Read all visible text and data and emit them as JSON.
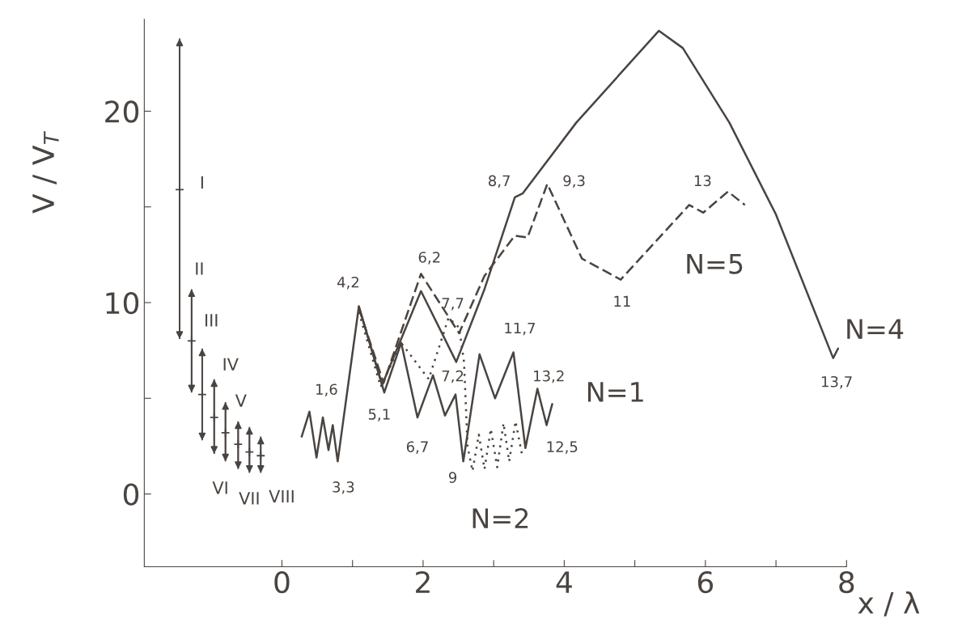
{
  "chart_data": {
    "type": "line",
    "xlabel": "x / λ",
    "ylabel": "V / V$_{T}$",
    "xlim": [
      -1.95,
      8
    ],
    "ylim": [
      -3.8,
      24.8
    ],
    "xticks": [
      0,
      {
        "value": 1,
        "label": null
      },
      2,
      {
        "value": 3,
        "label": null
      },
      4,
      {
        "value": 5,
        "label": null
      },
      6,
      {
        "value": 7,
        "label": null
      },
      8
    ],
    "yticks": [
      0,
      {
        "value": 5,
        "label": null
      },
      10,
      {
        "value": 15,
        "label": null
      },
      20
    ],
    "grid": false,
    "series": [
      {
        "color": "#4a4440",
        "line_style": "solid",
        "x": [
          0.28,
          0.39,
          0.49,
          0.58,
          0.66,
          0.72,
          0.79,
          1.09,
          1.45,
          1.69,
          1.92,
          2.14,
          2.31,
          2.46,
          2.57,
          2.8,
          3.02,
          3.28,
          3.45,
          3.62,
          3.75,
          3.83
        ],
        "values": [
          3.0,
          4.3,
          1.9,
          4.0,
          2.3,
          3.6,
          1.7,
          9.8,
          5.3,
          7.9,
          4.0,
          6.2,
          4.1,
          5.2,
          1.7,
          7.3,
          5.0,
          7.4,
          2.4,
          5.5,
          3.6,
          4.7
        ]
      },
      {
        "color": "#4a4440",
        "line_style": "dotted",
        "x": [
          1.09,
          1.4,
          1.69,
          2.08,
          2.36,
          2.51,
          2.58,
          2.63,
          2.7,
          2.79,
          2.87,
          2.96,
          3.05,
          3.14,
          3.22,
          3.31,
          3.4
        ],
        "values": [
          9.5,
          5.6,
          7.9,
          6.0,
          9.2,
          8.7,
          6.9,
          2.5,
          1.2,
          3.1,
          1.3,
          3.4,
          1.4,
          3.7,
          1.7,
          3.8,
          2.1
        ]
      },
      {
        "color": "#4a4440",
        "line_style": "solid",
        "x": [
          1.09,
          1.42,
          1.97,
          2.47,
          2.87,
          3.3,
          3.41,
          4.17,
          5.34,
          5.68,
          6.34,
          7.0,
          7.81,
          7.88
        ],
        "values": [
          9.8,
          5.7,
          10.6,
          6.9,
          10.7,
          15.5,
          15.7,
          19.4,
          24.2,
          23.3,
          19.4,
          14.6,
          7.1,
          7.6
        ]
      },
      {
        "color": "#4a4440",
        "line_style": "dashed",
        "x": [
          1.09,
          1.44,
          1.97,
          2.51,
          2.87,
          3.3,
          3.48,
          3.76,
          4.25,
          4.8,
          5.77,
          5.97,
          6.32,
          6.56
        ],
        "values": [
          9.7,
          5.8,
          11.5,
          8.4,
          11.4,
          13.5,
          13.4,
          16.2,
          12.3,
          11.2,
          15.1,
          14.7,
          15.8,
          15.1
        ]
      },
      {
        "type": "scatter",
        "color": "#4a4440",
        "marker": "cross",
        "x": [
          -1.45,
          -1.28,
          -1.13,
          -0.96,
          -0.8,
          -0.62,
          -0.46,
          -0.3
        ],
        "values": [
          15.9,
          8.0,
          5.2,
          4.0,
          3.2,
          2.6,
          2.2,
          2.0
        ],
        "errors": [
          [
            8.1,
            23.8
          ],
          [
            5.3,
            10.7
          ],
          [
            2.8,
            7.6
          ],
          [
            2.1,
            6.0
          ],
          [
            1.7,
            4.8
          ],
          [
            1.3,
            3.8
          ],
          [
            1.1,
            3.5
          ],
          [
            1.1,
            3.0
          ]
        ]
      }
    ],
    "annotations": [
      {
        "text": "1,6",
        "x": 0.39,
        "y": 4.3
      },
      {
        "text": "3,3",
        "x": 0.79,
        "y": 1.7
      },
      {
        "text": "4,2",
        "x": 1.09,
        "y": 9.8
      },
      {
        "text": "5,1",
        "x": 1.45,
        "y": 5.3
      },
      {
        "text": "6,2",
        "x": 1.97,
        "y": 11.5
      },
      {
        "text": "6,7",
        "x": 1.92,
        "y": 4.0
      },
      {
        "text": "7,7",
        "x": 2.51,
        "y": 8.4
      },
      {
        "text": "7,2",
        "x": 2.47,
        "y": 6.9
      },
      {
        "text": "9",
        "x": 2.57,
        "y": 1.7
      },
      {
        "text": "11,7",
        "x": 3.28,
        "y": 7.4
      },
      {
        "text": "13,2",
        "x": 3.62,
        "y": 5.5
      },
      {
        "text": "12,5",
        "x": 3.45,
        "y": 2.4
      },
      {
        "text": "8,7",
        "x": 3.41,
        "y": 15.7
      },
      {
        "text": "9,3",
        "x": 3.76,
        "y": 16.2
      },
      {
        "text": "13",
        "x": 6.32,
        "y": 15.8
      },
      {
        "text": "11",
        "x": 4.8,
        "y": 11.2
      },
      {
        "text": "13,7",
        "x": 7.81,
        "y": 7.1
      },
      {
        "text": "I",
        "x": -1.45,
        "y": 15.9
      },
      {
        "text": "II",
        "x": -1.28,
        "y": 10.7
      },
      {
        "text": "III",
        "x": -1.13,
        "y": 7.6
      },
      {
        "text": "IV",
        "x": -0.96,
        "y": 6.0
      },
      {
        "text": "V",
        "x": -0.8,
        "y": 4.8
      },
      {
        "text": "VI",
        "x": -0.8,
        "y": 1.7
      },
      {
        "text": "VII",
        "x": -0.46,
        "y": 1.1
      },
      {
        "text": "VIII",
        "x": -0.3,
        "y": 1.1
      },
      "N=5",
      "N=1",
      "N=2",
      "N=4"
    ]
  }
}
